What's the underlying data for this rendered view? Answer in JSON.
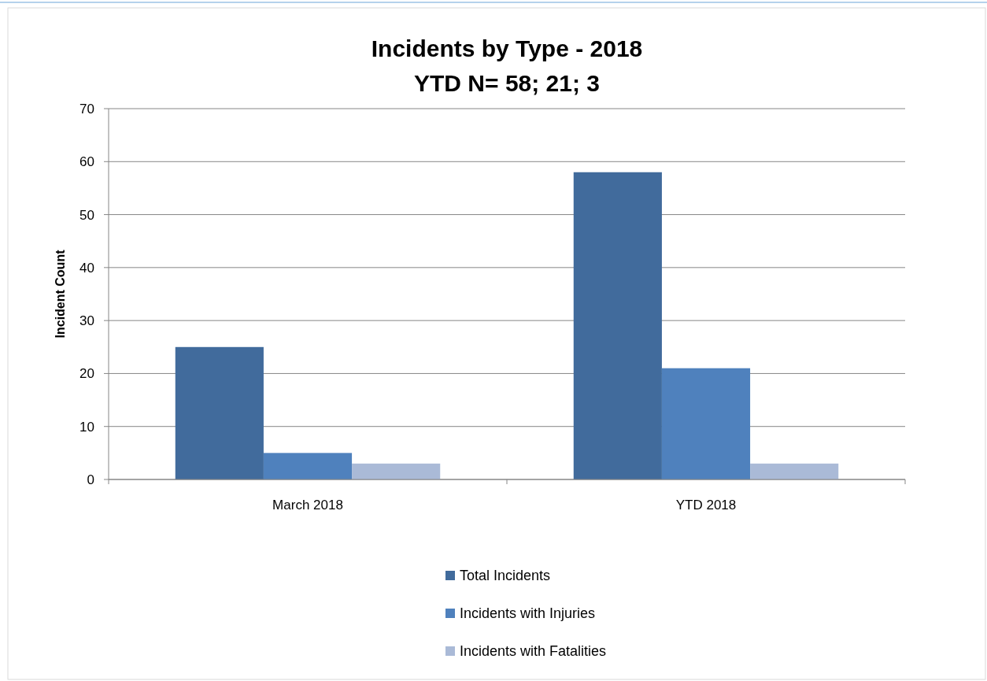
{
  "chart_data": {
    "type": "bar",
    "title": "Incidents by Type - 2018",
    "subtitle": "YTD N= 58; 21; 3",
    "ylabel": "Incident Count",
    "categories": [
      "March 2018",
      "YTD 2018"
    ],
    "series": [
      {
        "name": "Total Incidents",
        "color": "#416b9c",
        "values": [
          25,
          58
        ]
      },
      {
        "name": "Incidents with Injuries",
        "color": "#4f81bd",
        "values": [
          5,
          21
        ]
      },
      {
        "name": "Incidents with Fatalities",
        "color": "#aabad7",
        "values": [
          3,
          3
        ]
      }
    ],
    "ylim": [
      0,
      70
    ],
    "yticks": [
      0,
      10,
      20,
      30,
      40,
      50,
      60,
      70
    ],
    "grid": "y",
    "legend": "bottom"
  }
}
